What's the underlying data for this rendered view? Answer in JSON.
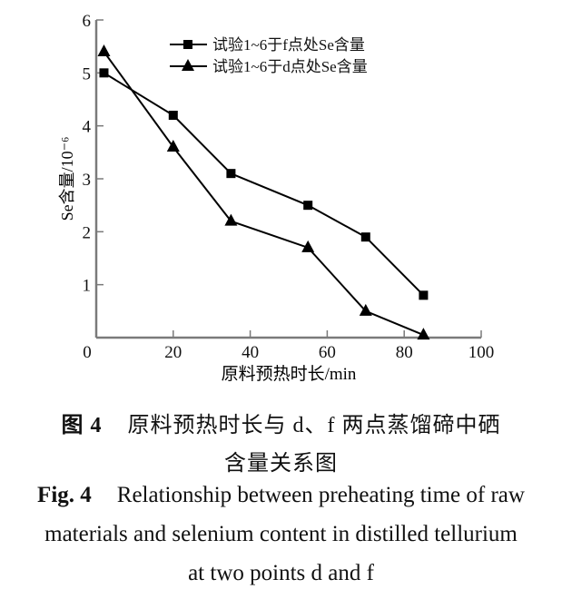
{
  "chart_data": {
    "type": "line",
    "title": "",
    "xlabel": "原料预热时长/min",
    "ylabel": "Se含量/10⁻⁶",
    "xlim": [
      0,
      100
    ],
    "ylim": [
      0,
      6
    ],
    "xticks": [
      0,
      20,
      40,
      60,
      80,
      100
    ],
    "yticks": [
      1,
      2,
      3,
      4,
      5,
      6
    ],
    "grid": false,
    "legend_position": "upper right",
    "series": [
      {
        "name": "试验1~6于f点处Se含量",
        "marker": "square",
        "x": [
          2,
          20,
          35,
          55,
          70,
          85
        ],
        "values": [
          5.0,
          4.2,
          3.1,
          2.5,
          1.9,
          0.8
        ]
      },
      {
        "name": "试验1~6于d点处Se含量",
        "marker": "triangle",
        "x": [
          2,
          20,
          35,
          55,
          70,
          85
        ],
        "values": [
          5.4,
          3.6,
          2.2,
          1.7,
          0.5,
          0.05
        ]
      }
    ]
  },
  "caption": {
    "cn_label": "图 4",
    "cn_line1": "原料预热时长与 d、f 两点蒸馏碲中硒",
    "cn_line2": "含量关系图",
    "en_label": "Fig. 4",
    "en_line1": "Relationship between preheating time of raw",
    "en_line2": "materials and selenium content in distilled tellurium",
    "en_line3": "at two points d and f"
  }
}
